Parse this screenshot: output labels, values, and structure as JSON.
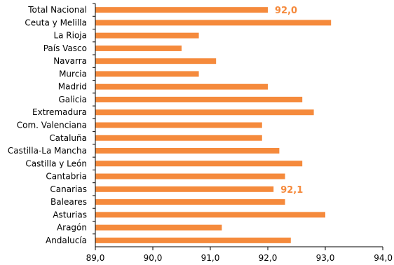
{
  "chart_data": {
    "type": "bar",
    "orientation": "horizontal",
    "title": "",
    "xlabel": "",
    "ylabel": "",
    "xlim": [
      89.0,
      94.0
    ],
    "ticks": [
      "89,0",
      "90,0",
      "91,0",
      "92,0",
      "93,0",
      "94,0"
    ],
    "tick_values": [
      89,
      90,
      91,
      92,
      93,
      94
    ],
    "grid": false,
    "bar_color": "#f58a3c",
    "label_color": "#f58a3c",
    "categories": [
      "Total Nacional",
      "Ceuta y Melilla",
      "La Rioja",
      "País Vasco",
      "Navarra",
      "Murcia",
      "Madrid",
      "Galicia",
      "Extremadura",
      "Com. Valenciana",
      "Cataluña",
      "Castilla-La Mancha",
      "Castilla y León",
      "Cantabria",
      "Canarias",
      "Baleares",
      "Asturias",
      "Aragón",
      "Andalucía"
    ],
    "values": [
      92.0,
      93.1,
      90.8,
      90.5,
      91.1,
      90.8,
      92.0,
      92.6,
      92.8,
      91.9,
      91.9,
      92.2,
      92.6,
      92.3,
      92.1,
      92.3,
      93.0,
      91.2,
      92.4
    ],
    "data_labels": [
      {
        "category": "Total Nacional",
        "text": "92,0"
      },
      {
        "category": "Canarias",
        "text": "92,1"
      }
    ]
  }
}
